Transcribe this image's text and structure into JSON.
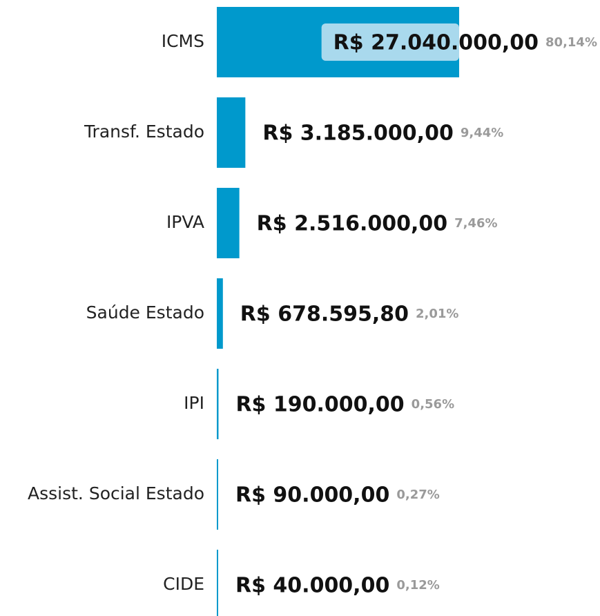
{
  "chart_data": {
    "type": "bar",
    "orientation": "horizontal",
    "color": "#0099cc",
    "categories": [
      "ICMS",
      "Transf. Estado",
      "IPVA",
      "Saúde Estado",
      "IPI",
      "Assist. Social Estado",
      "CIDE"
    ],
    "values": [
      27040000,
      3185000,
      2516000,
      678595.8,
      190000,
      90000,
      40000
    ],
    "value_labels": [
      "R$ 27.040.000,00",
      "R$ 3.185.000,00",
      "R$ 2.516.000,00",
      "R$ 678.595,80",
      "R$ 190.000,00",
      "R$ 90.000,00",
      "R$ 40.000,00"
    ],
    "shares": [
      80.14,
      9.44,
      7.46,
      2.01,
      0.56,
      0.27,
      0.12
    ],
    "share_labels": [
      "80,14%",
      "9,44%",
      "7,46%",
      "2,01%",
      "0,56%",
      "0,27%",
      "0,12%"
    ]
  }
}
